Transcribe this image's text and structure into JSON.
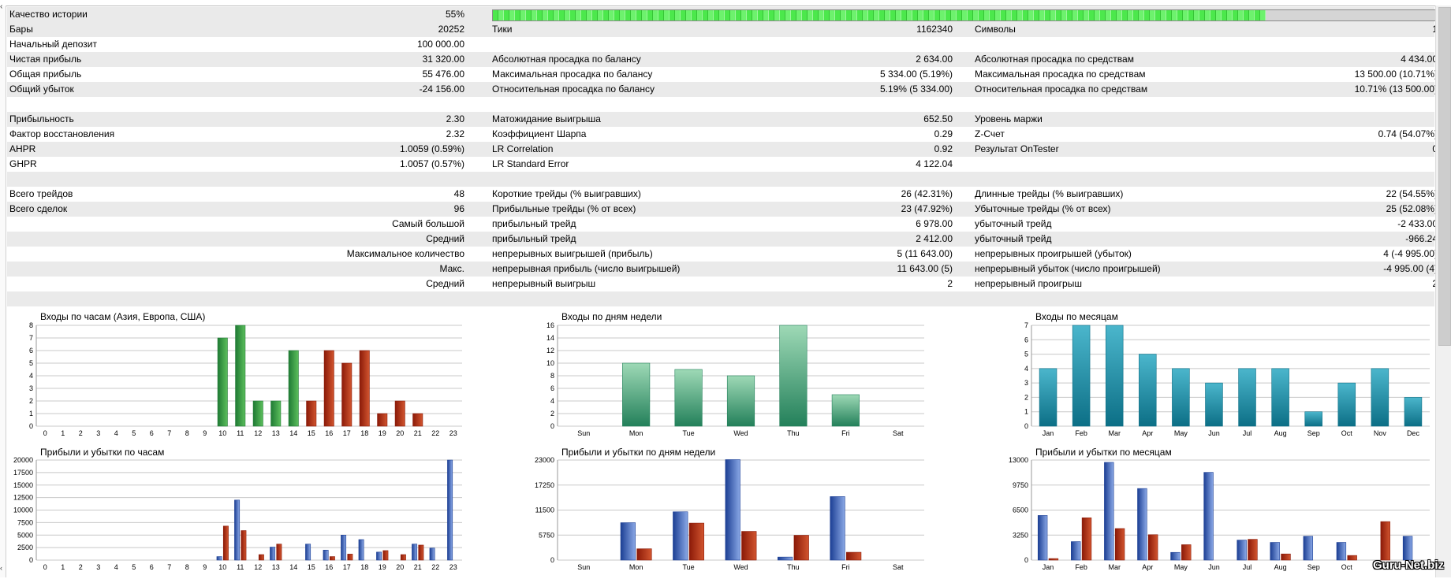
{
  "table": {
    "rows": [
      {
        "shade": true,
        "type": "quality",
        "cells": [
          "Качество истории",
          "55%",
          "",
          "",
          "",
          ""
        ]
      },
      {
        "shade": true,
        "cells": [
          "Бары",
          "20252",
          "Тики",
          "1162340",
          "Символы",
          "1"
        ]
      },
      {
        "shade": false,
        "cells": [
          "Начальный депозит",
          "100 000.00",
          "",
          "",
          "",
          ""
        ]
      },
      {
        "shade": true,
        "cells": [
          "Чистая прибыль",
          "31 320.00",
          "Абсолютная просадка по балансу",
          "2 634.00",
          "Абсолютная просадка по средствам",
          "4 434.00"
        ]
      },
      {
        "shade": false,
        "cells": [
          "Общая прибыль",
          "55 476.00",
          "Максимальная просадка по балансу",
          "5 334.00 (5.19%)",
          "Максимальная просадка по средствам",
          "13 500.00 (10.71%)"
        ]
      },
      {
        "shade": true,
        "cells": [
          "Общий убыток",
          "-24 156.00",
          "Относительная просадка по балансу",
          "5.19% (5 334.00)",
          "Относительная просадка по средствам",
          "10.71% (13 500.00)"
        ]
      },
      {
        "shade": false,
        "cells": [
          "",
          "",
          "",
          "",
          "",
          ""
        ]
      },
      {
        "shade": true,
        "cells": [
          "Прибыльность",
          "2.30",
          "Матожидание выигрыша",
          "652.50",
          "Уровень маржи",
          ""
        ]
      },
      {
        "shade": false,
        "cells": [
          "Фактор восстановления",
          "2.32",
          "Коэффициент Шарпа",
          "0.29",
          "Z-Счет",
          "0.74 (54.07%)"
        ]
      },
      {
        "shade": true,
        "cells": [
          "AHPR",
          "1.0059 (0.59%)",
          "LR Correlation",
          "0.92",
          "Результат OnTester",
          "0"
        ]
      },
      {
        "shade": false,
        "cells": [
          "GHPR",
          "1.0057 (0.57%)",
          "LR Standard Error",
          "4 122.04",
          "",
          ""
        ]
      },
      {
        "shade": true,
        "cells": [
          "",
          "",
          "",
          "",
          "",
          ""
        ]
      },
      {
        "shade": false,
        "cells": [
          "Всего трейдов",
          "48",
          "Короткие трейды (% выигравших)",
          "26 (42.31%)",
          "Длинные трейды (% выигравших)",
          "22 (54.55%)"
        ]
      },
      {
        "shade": true,
        "cells": [
          "Всего сделок",
          "96",
          "Прибыльные трейды (% от всех)",
          "23 (47.92%)",
          "Убыточные трейды (% от всех)",
          "25 (52.08%)"
        ]
      },
      {
        "shade": false,
        "type": "right",
        "cells": [
          "",
          "Самый большой",
          "прибыльный трейд",
          "6 978.00",
          "убыточный трейд",
          "-2 433.00"
        ]
      },
      {
        "shade": true,
        "type": "right",
        "cells": [
          "",
          "Средний",
          "прибыльный трейд",
          "2 412.00",
          "убыточный трейд",
          "-966.24"
        ]
      },
      {
        "shade": false,
        "type": "right",
        "cells": [
          "",
          "Максимальное количество",
          "непрерывных выигрышей (прибыль)",
          "5 (11 643.00)",
          "непрерывных проигрышей (убыток)",
          "4 (-4 995.00)"
        ]
      },
      {
        "shade": true,
        "type": "right",
        "cells": [
          "",
          "Макс.",
          "непрерывная прибыль (число выигрышей)",
          "11 643.00 (5)",
          "непрерывный убыток (число проигрышей)",
          "-4 995.00 (4)"
        ]
      },
      {
        "shade": false,
        "type": "right",
        "cells": [
          "",
          "Средний",
          "непрерывный выигрыш",
          "2",
          "непрерывный проигрыш",
          "2"
        ]
      },
      {
        "shade": true,
        "cells": [
          "",
          "",
          "",
          "",
          "",
          ""
        ]
      }
    ],
    "history_quality_fill": 0.82
  },
  "colors": {
    "green_dark": "#1f7a34",
    "green_light": "#5cbf5c",
    "red_dark": "#8b1a08",
    "red_light": "#d2552f",
    "blue_dark": "#1c3f94",
    "blue_light": "#8aa8e6",
    "teal_dark": "#0c6f86",
    "teal_light": "#4bb6cc",
    "sea_dark": "#23805a",
    "sea_light": "#9ed9b6",
    "grid": "#c8c8c8"
  },
  "chart_data": [
    {
      "type": "bar",
      "title": "Входы по часам (Азия, Европа, США)",
      "categories": [
        "0",
        "1",
        "2",
        "3",
        "4",
        "5",
        "6",
        "7",
        "8",
        "9",
        "10",
        "11",
        "12",
        "13",
        "14",
        "15",
        "16",
        "17",
        "18",
        "19",
        "20",
        "21",
        "22",
        "23"
      ],
      "values": [
        0,
        0,
        0,
        0,
        0,
        0,
        0,
        0,
        0,
        0,
        7,
        8,
        2,
        2,
        6,
        2,
        6,
        5,
        6,
        1,
        2,
        1,
        0,
        0
      ],
      "ylim": [
        0,
        8
      ],
      "yticks": [
        0,
        1,
        2,
        3,
        4,
        5,
        6,
        7,
        8
      ]
    },
    {
      "type": "bar",
      "title": "Входы по дням недели",
      "categories": [
        "Sun",
        "Mon",
        "Tue",
        "Wed",
        "Thu",
        "Fri",
        "Sat"
      ],
      "values": [
        0,
        10,
        9,
        8,
        16,
        5,
        0
      ],
      "ylim": [
        0,
        16
      ],
      "yticks": [
        0,
        2,
        4,
        6,
        8,
        10,
        12,
        14,
        16
      ]
    },
    {
      "type": "bar",
      "title": "Входы по месяцам",
      "categories": [
        "Jan",
        "Feb",
        "Mar",
        "Apr",
        "May",
        "Jun",
        "Jul",
        "Aug",
        "Sep",
        "Oct",
        "Nov",
        "Dec"
      ],
      "values": [
        4,
        7,
        7,
        5,
        4,
        3,
        4,
        4,
        1,
        3,
        4,
        2
      ],
      "ylim": [
        0,
        7
      ],
      "yticks": [
        0,
        1,
        2,
        3,
        4,
        5,
        6,
        7
      ]
    },
    {
      "type": "bar",
      "title": "Прибыли и убытки по часам",
      "categories": [
        "0",
        "1",
        "2",
        "3",
        "4",
        "5",
        "6",
        "7",
        "8",
        "9",
        "10",
        "11",
        "12",
        "13",
        "14",
        "15",
        "16",
        "17",
        "18",
        "19",
        "20",
        "21",
        "22",
        "23"
      ],
      "series": [
        {
          "values": [
            0,
            0,
            0,
            0,
            0,
            0,
            0,
            0,
            0,
            0,
            700,
            12000,
            0,
            2600,
            0,
            3200,
            2000,
            5000,
            4100,
            1600,
            0,
            3200,
            2400,
            20000
          ]
        },
        {
          "values": [
            0,
            0,
            0,
            0,
            0,
            0,
            0,
            0,
            0,
            0,
            6800,
            5900,
            1100,
            3200,
            0,
            0,
            700,
            1200,
            0,
            1900,
            1100,
            3000,
            0,
            0
          ]
        }
      ],
      "ylim": [
        0,
        20000
      ],
      "yticks": [
        0,
        2500,
        5000,
        7500,
        10000,
        12500,
        15000,
        17500,
        20000
      ]
    },
    {
      "type": "bar",
      "title": "Прибыли и убытки по дням недели",
      "categories": [
        "Sun",
        "Mon",
        "Tue",
        "Wed",
        "Thu",
        "Fri",
        "Sat"
      ],
      "series": [
        {
          "values": [
            0,
            8600,
            11100,
            23100,
            700,
            14600,
            0
          ]
        },
        {
          "values": [
            0,
            2600,
            8500,
            6600,
            5700,
            1800,
            0
          ]
        }
      ],
      "ylim": [
        0,
        23000
      ],
      "yticks": [
        0,
        5750,
        11500,
        17250,
        23000
      ]
    },
    {
      "type": "bar",
      "title": "Прибыли и убытки по месяцам",
      "categories": [
        "Jan",
        "Feb",
        "Mar",
        "Apr",
        "May",
        "Jun",
        "Jul",
        "Aug",
        "Sep",
        "Oct",
        "Nov",
        "Dec"
      ],
      "series": [
        {
          "values": [
            5800,
            2400,
            12700,
            9300,
            1000,
            11400,
            2600,
            2300,
            3100,
            2300,
            0,
            3100
          ]
        },
        {
          "values": [
            200,
            5500,
            4100,
            3300,
            2000,
            0,
            2700,
            800,
            0,
            600,
            5000,
            0
          ]
        }
      ],
      "ylim": [
        0,
        13000
      ],
      "yticks": [
        0,
        3250,
        6500,
        9750,
        13000
      ]
    }
  ],
  "watermark": "Guru-Net.biz"
}
